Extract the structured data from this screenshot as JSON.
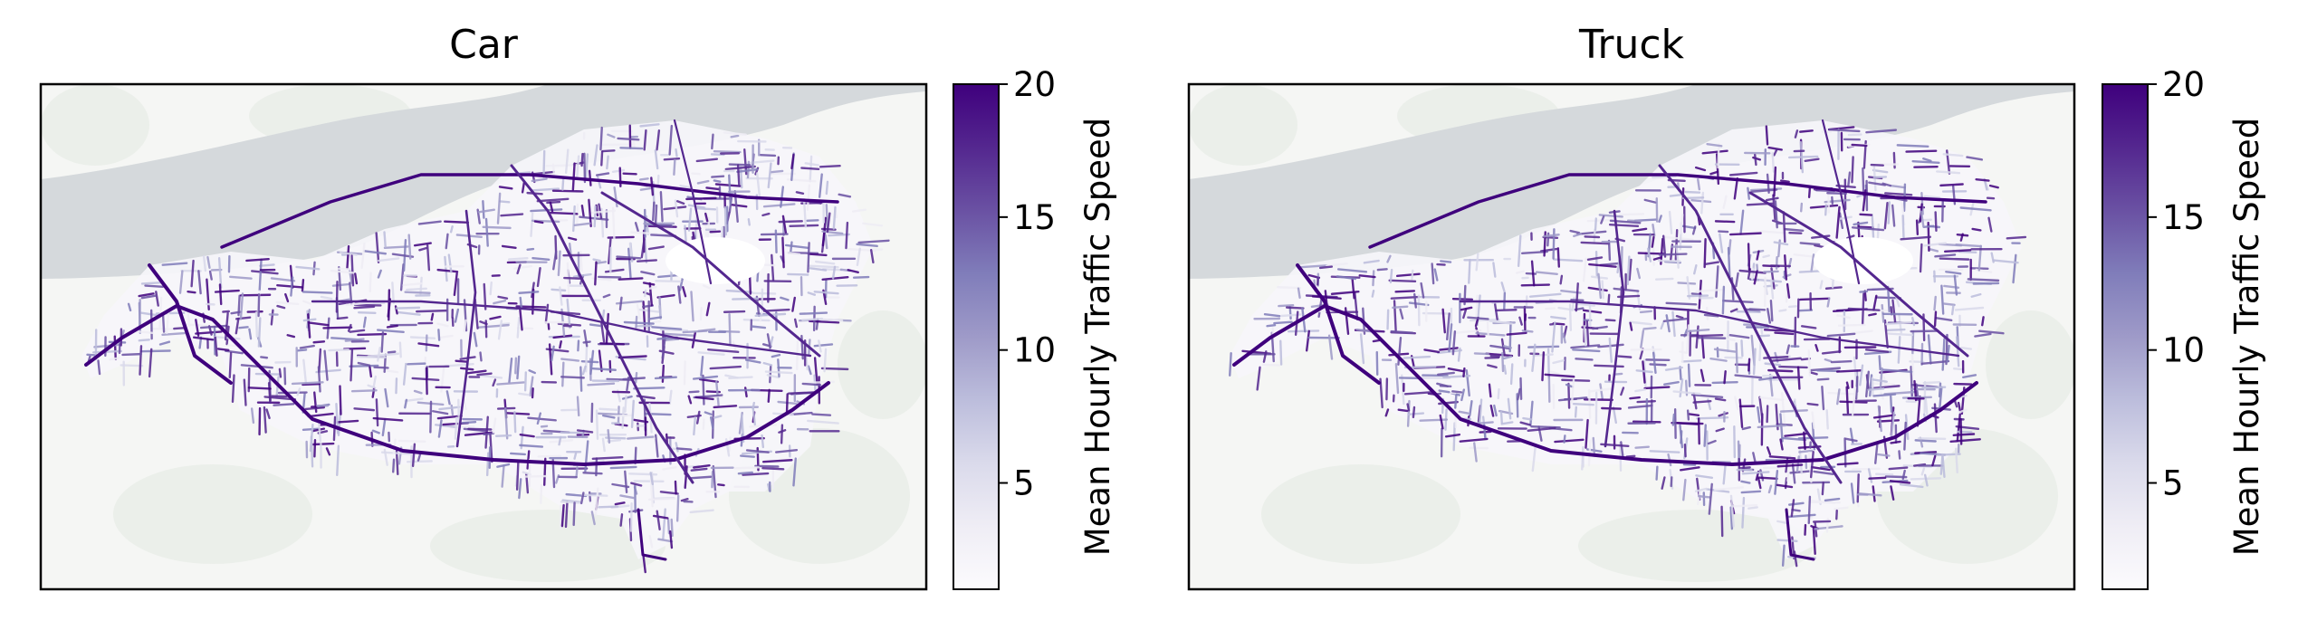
{
  "chart_data": [
    {
      "type": "heatmap",
      "title": "Car",
      "colorbar": {
        "label": "Mean Hourly Traffic Speed",
        "ticks": [
          5,
          10,
          15,
          20
        ],
        "range": [
          1,
          20
        ],
        "colormap": "Purples"
      },
      "x_ticks_visible": false,
      "y_ticks_visible": false
    },
    {
      "type": "heatmap",
      "title": "Truck",
      "colorbar": {
        "label": "Mean Hourly Traffic Speed",
        "ticks": [
          5,
          10,
          15,
          20
        ],
        "range": [
          1,
          20
        ],
        "colormap": "Purples"
      },
      "x_ticks_visible": false,
      "y_ticks_visible": false
    }
  ],
  "colors": {
    "land": "#f5f6f4",
    "green_areas": "#e9eee7",
    "water": "#d5d9dc",
    "speed_low": "#fcfbfd",
    "speed_high": "#3f007d"
  }
}
